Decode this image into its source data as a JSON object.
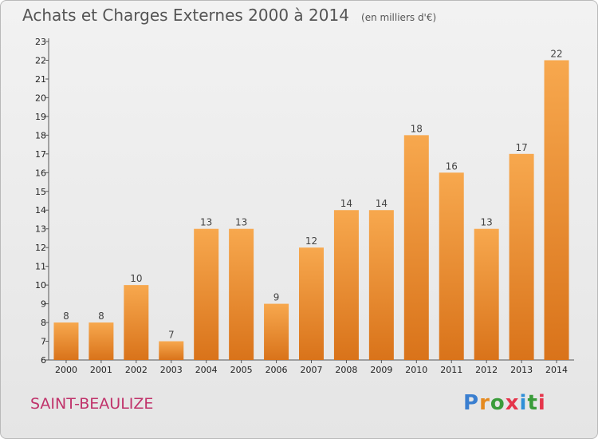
{
  "header": {
    "title": "Achats et Charges Externes 2000 à 2014",
    "subtitle": "(en milliers d'€)"
  },
  "footer": {
    "commune": "SAINT-BEAULIZE",
    "logo_text": "Proxiti"
  },
  "colors": {
    "bar_light": "#f7a84e",
    "bar_dark": "#d9731a",
    "commune": "#c0326a",
    "logo": [
      "#3a7fd0",
      "#e58a1f",
      "#3a9c3a",
      "#e5354b",
      "#2f8fd8",
      "#3a9c3a",
      "#e5354b"
    ]
  },
  "chart_data": {
    "type": "bar",
    "title": "Achats et Charges Externes 2000 à 2014",
    "subtitle": "(en milliers d'€)",
    "categories": [
      "2000",
      "2001",
      "2002",
      "2003",
      "2004",
      "2005",
      "2006",
      "2007",
      "2008",
      "2009",
      "2010",
      "2011",
      "2012",
      "2013",
      "2014"
    ],
    "values": [
      8,
      8,
      10,
      7,
      13,
      13,
      9,
      12,
      14,
      14,
      18,
      16,
      13,
      17,
      22
    ],
    "ylim": [
      6,
      23
    ],
    "yticks": [
      6,
      7,
      8,
      9,
      10,
      11,
      12,
      13,
      14,
      15,
      16,
      17,
      18,
      19,
      20,
      21,
      22,
      23
    ],
    "grid": false,
    "data_labels": true
  }
}
